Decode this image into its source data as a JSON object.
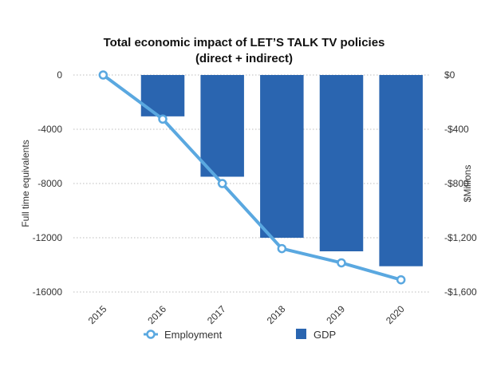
{
  "chart_data": {
    "type": "bar",
    "title_line1": "Total economic impact of LET’S TALK TV policies",
    "title_line2": "(direct + indirect)",
    "categories": [
      "2015",
      "2016",
      "2017",
      "2018",
      "2019",
      "2020"
    ],
    "y_left": {
      "label": "Full time equivalents",
      "range": [
        -16000,
        0
      ],
      "ticks": [
        0,
        -4000,
        -8000,
        -12000,
        -16000
      ],
      "tick_labels": [
        "0",
        "-4000",
        "-8000",
        "-12000",
        "-16000"
      ]
    },
    "y_right": {
      "label": "$Millions",
      "range": [
        -1600,
        0
      ],
      "ticks": [
        0,
        -400,
        -800,
        -1200,
        -1600
      ],
      "tick_labels": [
        "$0",
        "-$400",
        "-$800",
        "-$1,200",
        "-$1,600"
      ]
    },
    "series": [
      {
        "name": "Employment",
        "chart": "line",
        "axis": "left",
        "color": "#5aa8e0",
        "values": [
          0,
          -3250,
          -8000,
          -12800,
          -13850,
          -15100
        ]
      },
      {
        "name": "GDP",
        "chart": "bar",
        "axis": "right",
        "color": "#2a65b0",
        "values": [
          0,
          -305,
          -750,
          -1200,
          -1300,
          -1410
        ]
      }
    ],
    "grid": true,
    "legend_position": "bottom"
  }
}
